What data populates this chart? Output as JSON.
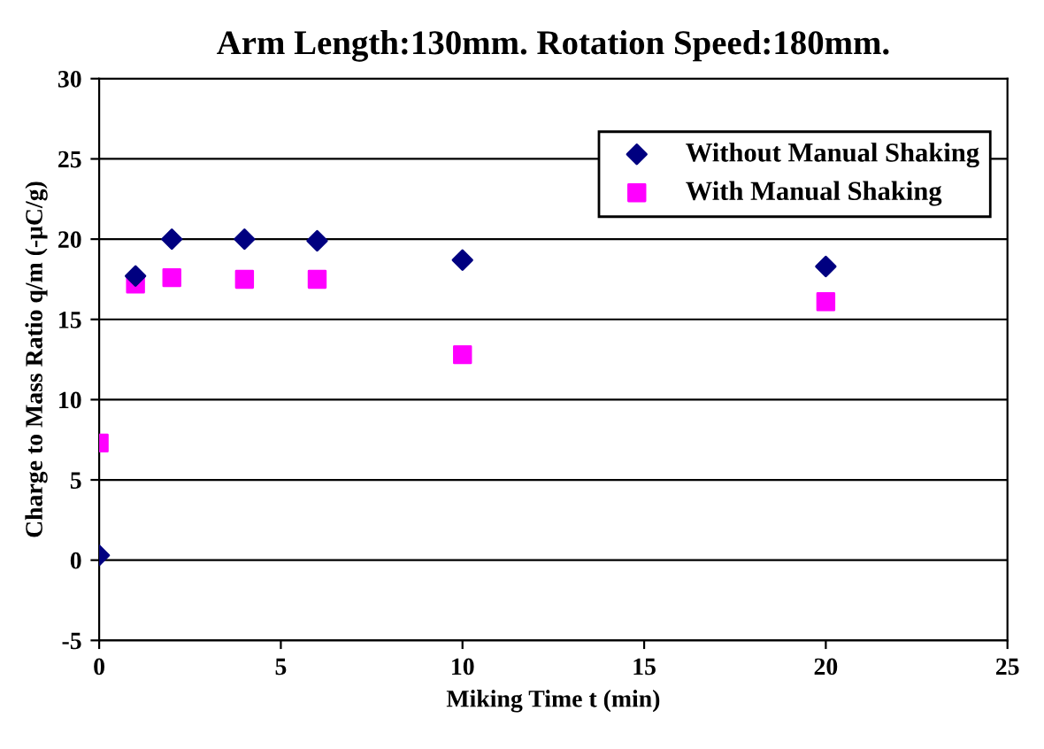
{
  "chart_data": {
    "type": "scatter",
    "title": "Arm Length:130mm. Rotation Speed:180mm.",
    "xlabel": "Miking Time t (min)",
    "ylabel": "Charge to Mass Ratio q/m (-μC/g)",
    "x": [
      0,
      1,
      2,
      4,
      6,
      10,
      20
    ],
    "series": [
      {
        "name": "Without Manual Shaking",
        "color": "#000080",
        "marker": "diamond",
        "values": [
          0.3,
          17.7,
          20,
          20,
          19.9,
          18.7,
          18.3
        ]
      },
      {
        "name": "With Manual Shaking",
        "color": "#ff00ff",
        "marker": "square",
        "values": [
          7.3,
          17.2,
          17.6,
          17.5,
          17.5,
          12.8,
          16.1
        ]
      }
    ],
    "xlim": [
      0,
      25
    ],
    "xticks": [
      0,
      5,
      10,
      15,
      20,
      25
    ],
    "ylim": [
      -5,
      30
    ],
    "yticks": [
      -5,
      0,
      5,
      10,
      15,
      20,
      25,
      30
    ],
    "grid": "y",
    "legend": "top right"
  }
}
